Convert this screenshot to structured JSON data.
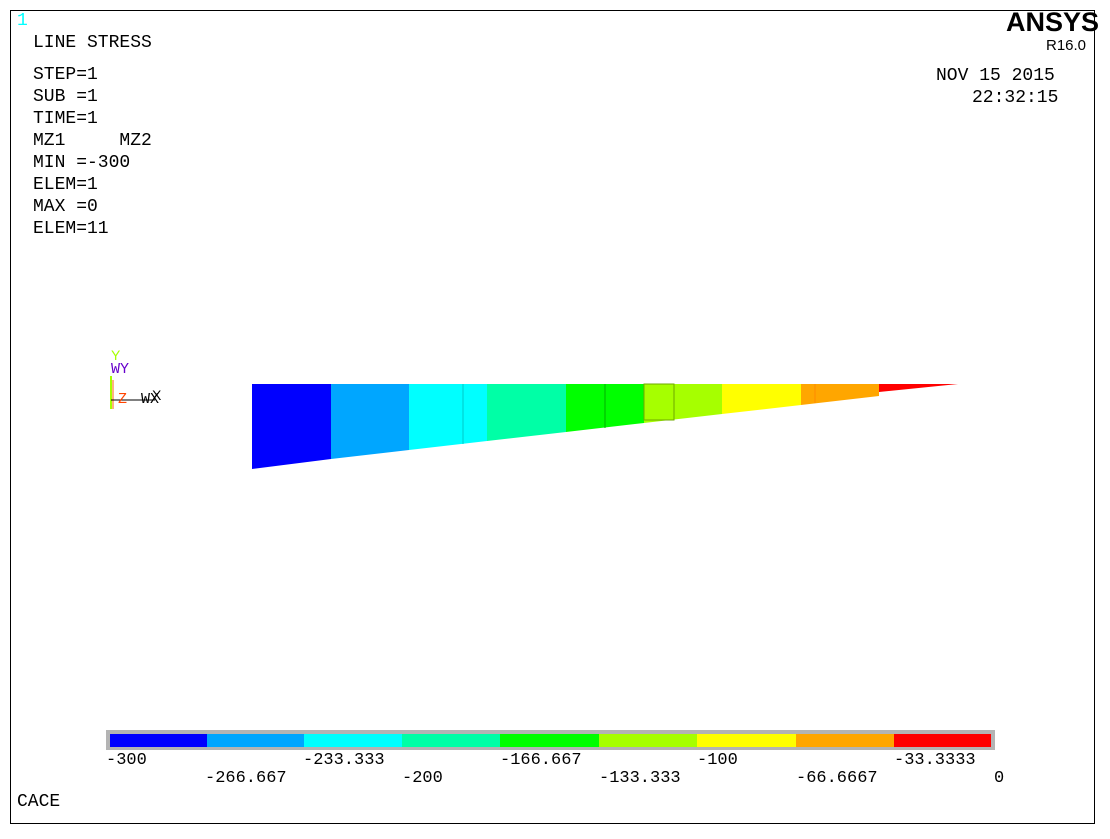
{
  "window_number": "1",
  "plot_title": "LINE STRESS",
  "info_lines": [
    "STEP=1",
    "SUB =1",
    "TIME=1",
    "MZ1     MZ2",
    "MIN =-300",
    "ELEM=1",
    "MAX =0",
    "ELEM=11"
  ],
  "brand": "ANSYS",
  "version": "R16.0",
  "date": "NOV 15 2015",
  "time": "22:32:15",
  "bottom_label": "CACE",
  "triad": {
    "y": "Y",
    "wy": "WY",
    "z": "Z",
    "wx": "WX",
    "x": "X"
  },
  "colors": {
    "c0": "#0000ff",
    "c1": "#00a6ff",
    "c2": "#00ffff",
    "c3": "#00ffa6",
    "c4": "#00ff00",
    "c5": "#a6ff00",
    "c6": "#ffff00",
    "c7": "#ffa600",
    "c8": "#ff0000"
  },
  "legend": {
    "bands": [
      "#0000ff",
      "#00a6ff",
      "#00ffff",
      "#00ffa6",
      "#00ff00",
      "#a6ff00",
      "#ffff00",
      "#ffa600",
      "#ff0000"
    ],
    "top_labels": [
      "-300",
      "-233.333",
      "-166.667",
      "-100",
      "-33.3333"
    ],
    "bottom_labels": [
      "-266.667",
      "-200",
      "-133.333",
      "-66.6667",
      "0"
    ]
  }
}
